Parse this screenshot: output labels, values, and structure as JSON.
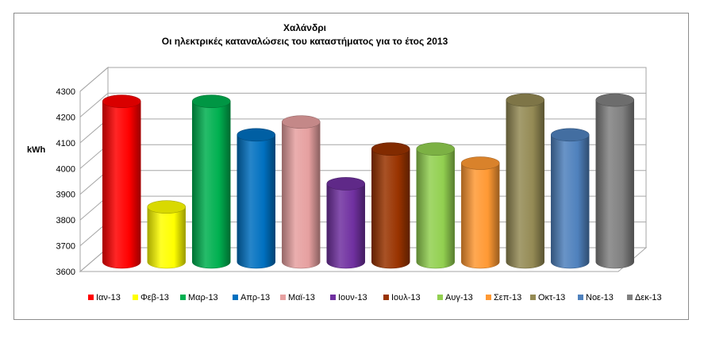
{
  "chart_data": {
    "type": "bar",
    "title": "Χαλάνδρι",
    "subtitle": "Οι ηλεκτρικές καταναλώσεις του καταστήματος για το έτος 2013",
    "ylabel": "kWh",
    "xlabel": "",
    "ylim": [
      3600,
      4300
    ],
    "yticks": [
      3600,
      3700,
      3800,
      3900,
      4000,
      4100,
      4200,
      4300
    ],
    "grid": true,
    "legend_position": "bottom",
    "style": "3d-cylinder",
    "categories": [
      "Ιαν-13",
      "Φεβ-13",
      "Μαρ-13",
      "Απρ-13",
      "Μαϊ-13",
      "Ιουν-13",
      "Ιουλ-13",
      "Αυγ-13",
      "Σεπ-13",
      "Οκτ-13",
      "Νοε-13",
      "Δεκ-13"
    ],
    "values": [
      4230,
      3820,
      4230,
      4100,
      4150,
      3910,
      4045,
      4045,
      3990,
      4235,
      4100,
      4235
    ],
    "colors": [
      "#ff0000",
      "#ffff00",
      "#00b050",
      "#0070c0",
      "#e6a0a0",
      "#7030a0",
      "#993300",
      "#92d050",
      "#ff9933",
      "#948a54",
      "#4f81bd",
      "#808080"
    ]
  }
}
